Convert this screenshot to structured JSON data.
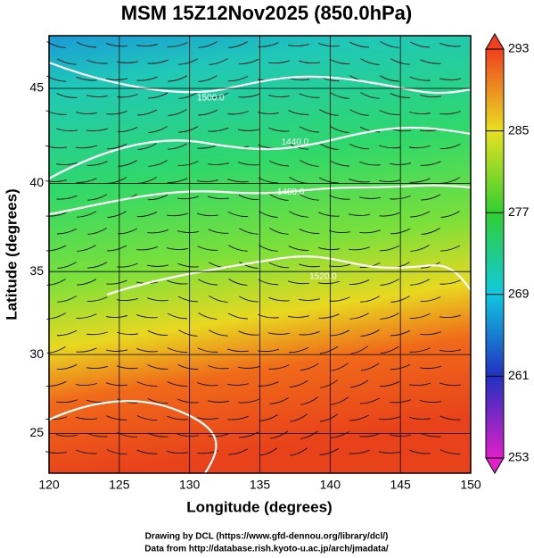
{
  "chart_data": {
    "type": "map",
    "title": "MSM 15Z12Nov2025 (850.0hPa)",
    "x_label": "Longitude (degrees)",
    "y_label": "Latitude  (degrees)",
    "xlim": [
      120,
      150
    ],
    "xticks": [
      120,
      125,
      130,
      135,
      140,
      145,
      150
    ],
    "ylim": [
      22.4,
      47.6
    ],
    "yticks": [
      25,
      30,
      35,
      40,
      45
    ],
    "colorbar": {
      "lim": [
        253,
        293
      ],
      "ticks": [
        253,
        261,
        269,
        277,
        285,
        293
      ]
    },
    "contour_labels": [
      {
        "text": "1500.0",
        "x": 131.5,
        "y": 44.5
      },
      {
        "text": "1440.0",
        "x": 137.5,
        "y": 42.2
      },
      {
        "text": "1480.0",
        "x": 137.2,
        "y": 39.5
      },
      {
        "text": "1520.0",
        "x": 139.5,
        "y": 34.7
      }
    ],
    "footer": [
      "Drawing by DCL (https://www.gfd-dennou.org/library/dcl/)",
      "Data from http://database.rish.kyoto-u.ac.jp/arch/jmadata/"
    ]
  }
}
